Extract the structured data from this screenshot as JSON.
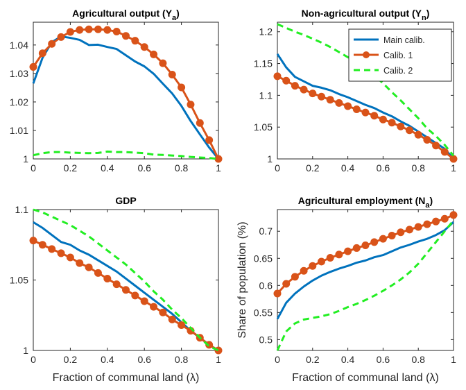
{
  "colors": {
    "main": "#0072bd",
    "calib1": "#d95319",
    "calib2": "#22ee22",
    "axis": "#262626"
  },
  "chart_data": [
    {
      "id": "agri-output",
      "type": "line",
      "title": "Agricultural output (Y",
      "title_sub": "a",
      "title_end": ")",
      "xlabel": "",
      "ylabel": "",
      "xlim": [
        0,
        1
      ],
      "ylim": [
        1,
        1.048
      ],
      "xticks": [
        0,
        0.2,
        0.4,
        0.6,
        0.8,
        1
      ],
      "xtick_labels": [
        "0",
        "0.2",
        "0.4",
        "0.6",
        "0.8",
        "1"
      ],
      "yticks": [
        1,
        1.01,
        1.02,
        1.03,
        1.04
      ],
      "ytick_labels": [
        "1",
        "1.01",
        "1.02",
        "1.03",
        "1.04"
      ],
      "x": [
        0,
        0.05,
        0.1,
        0.15,
        0.2,
        0.25,
        0.3,
        0.35,
        0.4,
        0.45,
        0.5,
        0.55,
        0.6,
        0.65,
        0.7,
        0.75,
        0.8,
        0.85,
        0.9,
        0.95,
        1
      ],
      "series": [
        {
          "name": "Main calib.",
          "style": "main",
          "values": [
            1.0265,
            1.0355,
            1.041,
            1.043,
            1.0425,
            1.0418,
            1.04,
            1.0401,
            1.0393,
            1.0386,
            1.0364,
            1.0342,
            1.0325,
            1.0299,
            1.0264,
            1.023,
            1.0186,
            1.0133,
            1.0086,
            1.004,
            1.0
          ]
        },
        {
          "name": "Calib. 1",
          "style": "calib1",
          "values": [
            1.0323,
            1.0371,
            1.0404,
            1.0428,
            1.0446,
            1.0453,
            1.0455,
            1.0455,
            1.0453,
            1.0447,
            1.0432,
            1.0415,
            1.0393,
            1.0367,
            1.0336,
            1.0296,
            1.0251,
            1.0191,
            1.0126,
            1.0066,
            1.0
          ]
        },
        {
          "name": "Calib. 2",
          "style": "calib2",
          "values": [
            1.0013,
            1.002,
            1.0024,
            1.0024,
            1.0022,
            1.0021,
            1.002,
            1.0021,
            1.0026,
            1.0024,
            1.0024,
            1.0022,
            1.002,
            1.0015,
            1.0014,
            1.0012,
            1.001,
            1.0007,
            1.0005,
            1.0003,
            1.0
          ]
        }
      ]
    },
    {
      "id": "nonagri-output",
      "type": "line",
      "title": "Non-agricultural output (Y",
      "title_sub": "n",
      "title_end": ")",
      "xlabel": "",
      "ylabel": "",
      "xlim": [
        0,
        1
      ],
      "ylim": [
        1,
        1.215
      ],
      "xticks": [
        0,
        0.2,
        0.4,
        0.6,
        0.8,
        1
      ],
      "xtick_labels": [
        "0",
        "0.2",
        "0.4",
        "0.6",
        "0.8",
        "1"
      ],
      "yticks": [
        1,
        1.05,
        1.1,
        1.15,
        1.2
      ],
      "ytick_labels": [
        "1",
        "1.05",
        "1.1",
        "1.15",
        "1.2"
      ],
      "legend": {
        "position": "top-right",
        "entries": [
          "Main calib.",
          "Calib. 1",
          "Calib. 2"
        ]
      },
      "x": [
        0,
        0.05,
        0.1,
        0.15,
        0.2,
        0.25,
        0.3,
        0.35,
        0.4,
        0.45,
        0.5,
        0.55,
        0.6,
        0.65,
        0.7,
        0.75,
        0.8,
        0.85,
        0.9,
        0.95,
        1
      ],
      "series": [
        {
          "name": "Main calib.",
          "style": "main",
          "values": [
            1.165,
            1.144,
            1.129,
            1.122,
            1.115,
            1.112,
            1.108,
            1.102,
            1.097,
            1.091,
            1.085,
            1.08,
            1.073,
            1.067,
            1.059,
            1.052,
            1.043,
            1.034,
            1.025,
            1.016,
            1.0
          ]
        },
        {
          "name": "Calib. 1",
          "style": "calib1",
          "values": [
            1.13,
            1.123,
            1.115,
            1.109,
            1.103,
            1.098,
            1.093,
            1.088,
            1.083,
            1.078,
            1.073,
            1.068,
            1.062,
            1.057,
            1.051,
            1.045,
            1.038,
            1.03,
            1.021,
            1.011,
            1.0
          ]
        },
        {
          "name": "Calib. 2",
          "style": "calib2",
          "values": [
            1.212,
            1.206,
            1.2,
            1.195,
            1.189,
            1.183,
            1.176,
            1.168,
            1.16,
            1.151,
            1.141,
            1.131,
            1.119,
            1.105,
            1.092,
            1.078,
            1.064,
            1.048,
            1.036,
            1.022,
            1.005
          ]
        }
      ]
    },
    {
      "id": "gdp",
      "type": "line",
      "title": "GDP",
      "title_sub": "",
      "title_end": "",
      "xlabel": "Fraction of communal land (λ)",
      "ylabel": "",
      "xlim": [
        0,
        1
      ],
      "ylim": [
        1,
        1.1
      ],
      "xticks": [
        0,
        0.2,
        0.4,
        0.6,
        0.8,
        1
      ],
      "xtick_labels": [
        "0",
        "0.2",
        "0.4",
        "0.6",
        "0.8",
        "1"
      ],
      "yticks": [
        1,
        1.05,
        1.1
      ],
      "ytick_labels": [
        "1",
        "1.05",
        "1.1"
      ],
      "x": [
        0,
        0.05,
        0.1,
        0.15,
        0.2,
        0.25,
        0.3,
        0.35,
        0.4,
        0.45,
        0.5,
        0.55,
        0.6,
        0.65,
        0.7,
        0.75,
        0.8,
        0.85,
        0.9,
        0.95,
        1
      ],
      "series": [
        {
          "name": "Main calib.",
          "style": "main",
          "values": [
            1.091,
            1.087,
            1.082,
            1.077,
            1.075,
            1.071,
            1.068,
            1.064,
            1.06,
            1.056,
            1.051,
            1.046,
            1.041,
            1.036,
            1.031,
            1.026,
            1.02,
            1.014,
            1.009,
            1.004,
            1.0
          ]
        },
        {
          "name": "Calib. 1",
          "style": "calib1",
          "values": [
            1.078,
            1.075,
            1.072,
            1.069,
            1.066,
            1.062,
            1.059,
            1.055,
            1.051,
            1.047,
            1.043,
            1.039,
            1.035,
            1.031,
            1.027,
            1.022,
            1.018,
            1.014,
            1.009,
            1.004,
            1.0
          ]
        },
        {
          "name": "Calib. 2",
          "style": "calib2",
          "values": [
            1.1,
            1.098,
            1.095,
            1.092,
            1.089,
            1.085,
            1.081,
            1.076,
            1.071,
            1.066,
            1.061,
            1.055,
            1.049,
            1.042,
            1.036,
            1.029,
            1.023,
            1.016,
            1.009,
            1.003,
            1.0
          ]
        }
      ]
    },
    {
      "id": "agri-employment",
      "type": "line",
      "title": "Agricultural employment (N",
      "title_sub": "a",
      "title_end": ")",
      "xlabel": "Fraction of communal land (λ)",
      "ylabel": "Share of population (%)",
      "xlim": [
        0,
        1
      ],
      "ylim": [
        0.48,
        0.74
      ],
      "xticks": [
        0,
        0.2,
        0.4,
        0.6,
        0.8,
        1
      ],
      "xtick_labels": [
        "0",
        "0.2",
        "0.4",
        "0.6",
        "0.8",
        "1"
      ],
      "yticks": [
        0.5,
        0.55,
        0.6,
        0.65,
        0.7
      ],
      "ytick_labels": [
        "0.5",
        "0.55",
        "0.6",
        "0.65",
        "0.7"
      ],
      "x": [
        0,
        0.05,
        0.1,
        0.15,
        0.2,
        0.25,
        0.3,
        0.35,
        0.4,
        0.45,
        0.5,
        0.55,
        0.6,
        0.65,
        0.7,
        0.75,
        0.8,
        0.85,
        0.9,
        0.95,
        1
      ],
      "series": [
        {
          "name": "Main calib.",
          "style": "main",
          "values": [
            0.538,
            0.568,
            0.585,
            0.598,
            0.609,
            0.618,
            0.625,
            0.631,
            0.636,
            0.642,
            0.646,
            0.652,
            0.656,
            0.663,
            0.67,
            0.675,
            0.681,
            0.686,
            0.693,
            0.702,
            0.717
          ]
        },
        {
          "name": "Calib. 1",
          "style": "calib1",
          "values": [
            0.585,
            0.603,
            0.616,
            0.627,
            0.636,
            0.644,
            0.651,
            0.657,
            0.663,
            0.669,
            0.674,
            0.68,
            0.686,
            0.692,
            0.698,
            0.703,
            0.708,
            0.713,
            0.718,
            0.723,
            0.73
          ]
        },
        {
          "name": "Calib. 2",
          "style": "calib2",
          "values": [
            0.48,
            0.515,
            0.53,
            0.537,
            0.54,
            0.543,
            0.547,
            0.553,
            0.56,
            0.566,
            0.573,
            0.581,
            0.59,
            0.6,
            0.611,
            0.624,
            0.64,
            0.66,
            0.68,
            0.7,
            0.72
          ]
        }
      ]
    }
  ]
}
